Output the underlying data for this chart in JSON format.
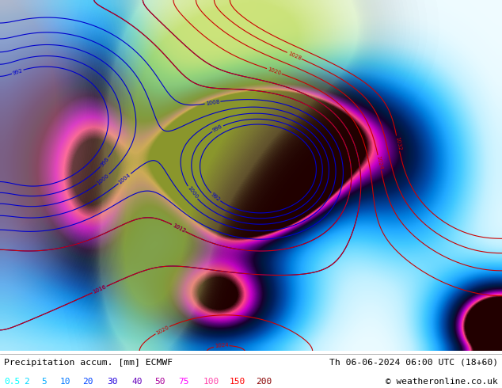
{
  "title_left": "Precipitation accum. [mm] ECMWF",
  "title_right": "Th 06-06-2024 06:00 UTC (18+60)",
  "copyright": "© weatheronline.co.uk",
  "legend_values": [
    "0.5",
    "2",
    "5",
    "10",
    "20",
    "30",
    "40",
    "50",
    "75",
    "100",
    "150",
    "200"
  ],
  "legend_colors": [
    "#00ffff",
    "#00d8ff",
    "#00aaff",
    "#0077ff",
    "#0044ff",
    "#2200dd",
    "#6600bb",
    "#aa0099",
    "#ff00ff",
    "#ff44aa",
    "#ff0000",
    "#880000"
  ],
  "background_color": "#ffffff",
  "figsize": [
    6.34,
    4.9
  ],
  "dpi": 100
}
